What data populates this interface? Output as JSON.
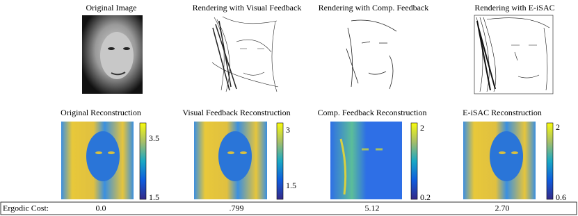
{
  "panels": [
    {
      "title": "Original Image",
      "reconstruction": {
        "title": "Original Reconstruction",
        "colorbar_ticks": [
          "3.5",
          "1.5"
        ]
      }
    },
    {
      "title": "Rendering with Visual Feedback",
      "reconstruction": {
        "title": "Visual Feedback Reconstruction",
        "colorbar_ticks": [
          "3",
          "1.5"
        ]
      }
    },
    {
      "title": "Rendering with Comp. Feedback",
      "reconstruction": {
        "title": "Comp. Feedback Reconstruction",
        "colorbar_ticks": [
          "2",
          "0.2"
        ]
      }
    },
    {
      "title": "Rendering with E-iSAC",
      "reconstruction": {
        "title": "E-iSAC Reconstruction",
        "colorbar_ticks": [
          "2",
          "0.6"
        ]
      }
    }
  ],
  "table": {
    "label": "Ergodic Cost:",
    "values": [
      "0.0",
      ".799",
      "5.12",
      "2.70"
    ]
  }
}
